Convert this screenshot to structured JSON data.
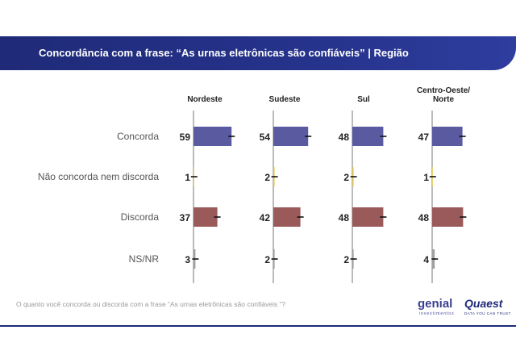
{
  "title": "Concordância com a frase: “As urnas eletrônicas são confiáveis” | Região",
  "footnote": "O quanto você concorda ou discorda com a frase “As urnas eletrônicas são confiáveis ”?",
  "logos": {
    "genial": "genial",
    "genial_sub": "investimentos",
    "quaest": "Quaest",
    "quaest_sub": "DATA YOU CAN TRUST"
  },
  "colors": {
    "header": "#1f2a78",
    "concorda": "#5a5aa0",
    "neutral": "#e8c84a",
    "discorda": "#9a5a5a",
    "nsnr": "#a0a0a0"
  },
  "chart_data": {
    "type": "bar",
    "orientation": "horizontal",
    "categories": [
      "Concorda",
      "Não concorda nem discorda",
      "Discorda",
      "NS/NR"
    ],
    "panels": [
      {
        "name": "Nordeste",
        "label_lines": [
          "Nordeste"
        ],
        "values": [
          59,
          1,
          37,
          3
        ]
      },
      {
        "name": "Sudeste",
        "label_lines": [
          "Sudeste"
        ],
        "values": [
          54,
          2,
          42,
          2
        ]
      },
      {
        "name": "Sul",
        "label_lines": [
          "Sul"
        ],
        "values": [
          48,
          2,
          48,
          2
        ]
      },
      {
        "name": "Centro-Oeste/Norte",
        "label_lines": [
          "Centro-Oeste/",
          "Norte"
        ],
        "values": [
          47,
          1,
          48,
          4
        ]
      }
    ],
    "error_bars": true,
    "unit": "%"
  }
}
